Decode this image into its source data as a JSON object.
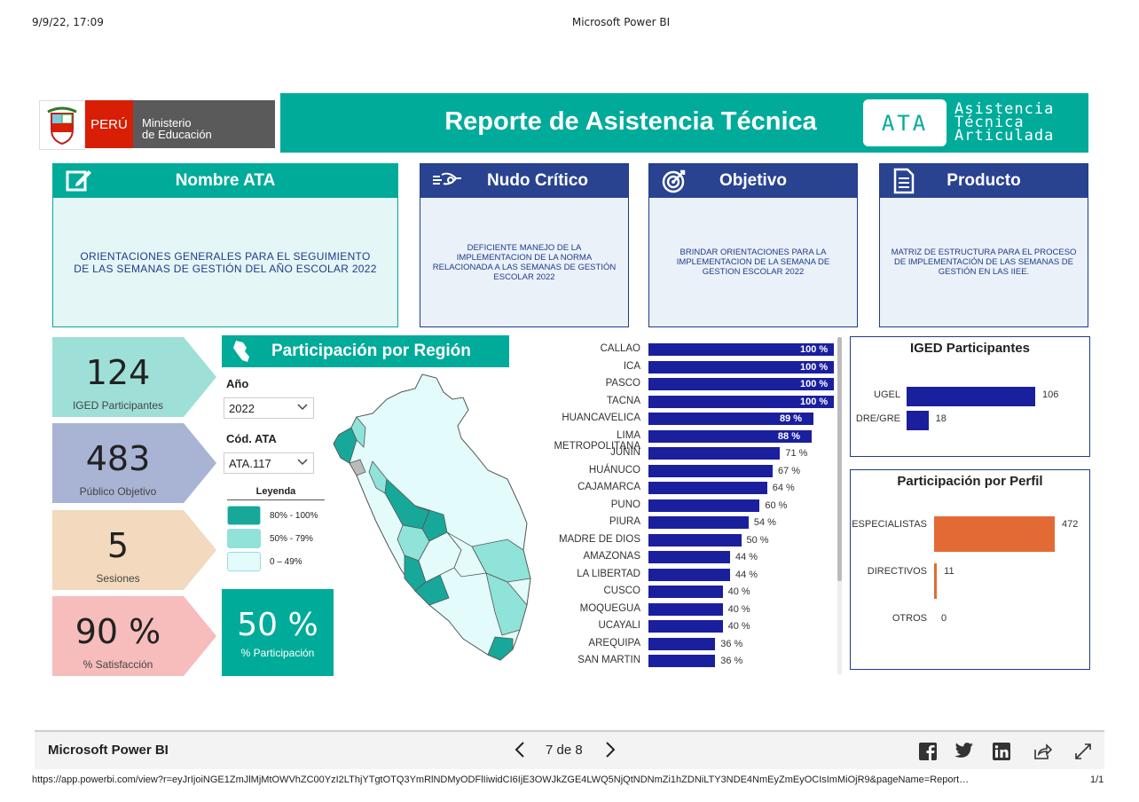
{
  "print": {
    "date": "9/9/22, 17:09",
    "title": "Microsoft Power BI",
    "url": "https://app.powerbi.com/view?r=eyJrIjoiNGE1ZmJlMjMtOWVhZC00YzI2LThjYTgtOTQ3YmRlNDMyODFlIiwidCI6IjE3OWJkZGE4LWQ5NjQtNDNmZi1hZDNiLTY3NDE4NmEyZmEyOCIsImMiOjR9&pageName=Report…",
    "page_count": "1/1"
  },
  "header": {
    "logo_peru": "PERÚ",
    "logo_ministry_line1": "Ministerio",
    "logo_ministry_line2": "de Educación",
    "title": "Reporte de Asistencia Técnica",
    "badge": "ATA",
    "badge_text": [
      "Asistencia",
      "Técnica",
      "Articulada"
    ]
  },
  "cards": {
    "nombre": {
      "title": "Nombre ATA",
      "body": "ORIENTACIONES GENERALES PARA EL SEGUIMIENTO DE LAS SEMANAS DE GESTIÓN DEL AÑO ESCOLAR 2022"
    },
    "nudo": {
      "title": "Nudo Crítico",
      "body": "DEFICIENTE MANEJO DE LA IMPLEMENTACION DE LA NORMA RELACIONADA A LAS SEMANAS DE GESTIÓN ESCOLAR 2022"
    },
    "objetivo": {
      "title": "Objetivo",
      "body": "BRINDAR ORIENTACIONES PARA LA IMPLEMENTACION DE LA SEMANA DE GESTION ESCOLAR 2022"
    },
    "producto": {
      "title": "Producto",
      "body": "MATRIZ DE ESTRUCTURA PARA EL PROCESO DE IMPLEMENTACIÓN DE LAS SEMANAS DE GESTIÓN EN LAS IIEE."
    }
  },
  "kpis": {
    "iged": {
      "value": "124",
      "label": "IGED Participantes",
      "color": "#9ee0d8"
    },
    "publico": {
      "value": "483",
      "label": "Público Objetivo",
      "color": "#a9b3d4"
    },
    "sesiones": {
      "value": "5",
      "label": "Sesiones",
      "color": "#f3d9bd"
    },
    "satisfaccion": {
      "value": "90 %",
      "label": "% Satisfacción",
      "color": "#f7bcbc"
    }
  },
  "region": {
    "title": "Participación por Región",
    "year_label": "Año",
    "year_value": "2022",
    "code_label": "Cód. ATA",
    "code_value": "ATA.117",
    "legend_title": "Leyenda",
    "legend": [
      {
        "label": "80% - 100%",
        "color": "#17a89a"
      },
      {
        "label": "50% - 79%",
        "color": "#8fe3d8"
      },
      {
        "label": "0 – 49%",
        "color": "#e3fbfa"
      }
    ],
    "participation_value": "50 %",
    "participation_label": "% Participación"
  },
  "chart_data": [
    {
      "type": "bar",
      "title": "",
      "orientation": "horizontal",
      "categories": [
        "CALLAO",
        "ICA",
        "PASCO",
        "TACNA",
        "HUANCAVELICA",
        "LIMA METROPOLITANA",
        "JUNÍN",
        "HUÁNUCO",
        "CAJAMARCA",
        "PUNO",
        "PIURA",
        "MADRE DE DIOS",
        "AMAZONAS",
        "LA LIBERTAD",
        "CUSCO",
        "MOQUEGUA",
        "UCAYALI",
        "AREQUIPA",
        "SAN MARTIN"
      ],
      "values": [
        100,
        100,
        100,
        100,
        89,
        88,
        71,
        67,
        64,
        60,
        54,
        50,
        44,
        44,
        40,
        40,
        40,
        36,
        36
      ],
      "value_labels": [
        "100 %",
        "100 %",
        "100 %",
        "100 %",
        "89 %",
        "88 %",
        "71 %",
        "67 %",
        "64 %",
        "60 %",
        "54 %",
        "50 %",
        "44 %",
        "44 %",
        "40 %",
        "40 %",
        "40 %",
        "36 %",
        "36 %"
      ],
      "xlim": [
        0,
        100
      ],
      "color": "#1a1f9e"
    },
    {
      "type": "bar",
      "title": "IGED Participantes",
      "orientation": "horizontal",
      "categories": [
        "UGEL",
        "DRE/GRE"
      ],
      "values": [
        106,
        18
      ],
      "color": "#1a1f9e"
    },
    {
      "type": "bar",
      "title": "Participación por Perfil",
      "orientation": "horizontal",
      "categories": [
        "ESPECIALISTAS",
        "DIRECTIVOS",
        "OTROS"
      ],
      "values": [
        472,
        11,
        0
      ],
      "color": "#e46a35"
    }
  ],
  "footer": {
    "app_name": "Microsoft Power BI",
    "page_indicator": "7 de 8"
  }
}
